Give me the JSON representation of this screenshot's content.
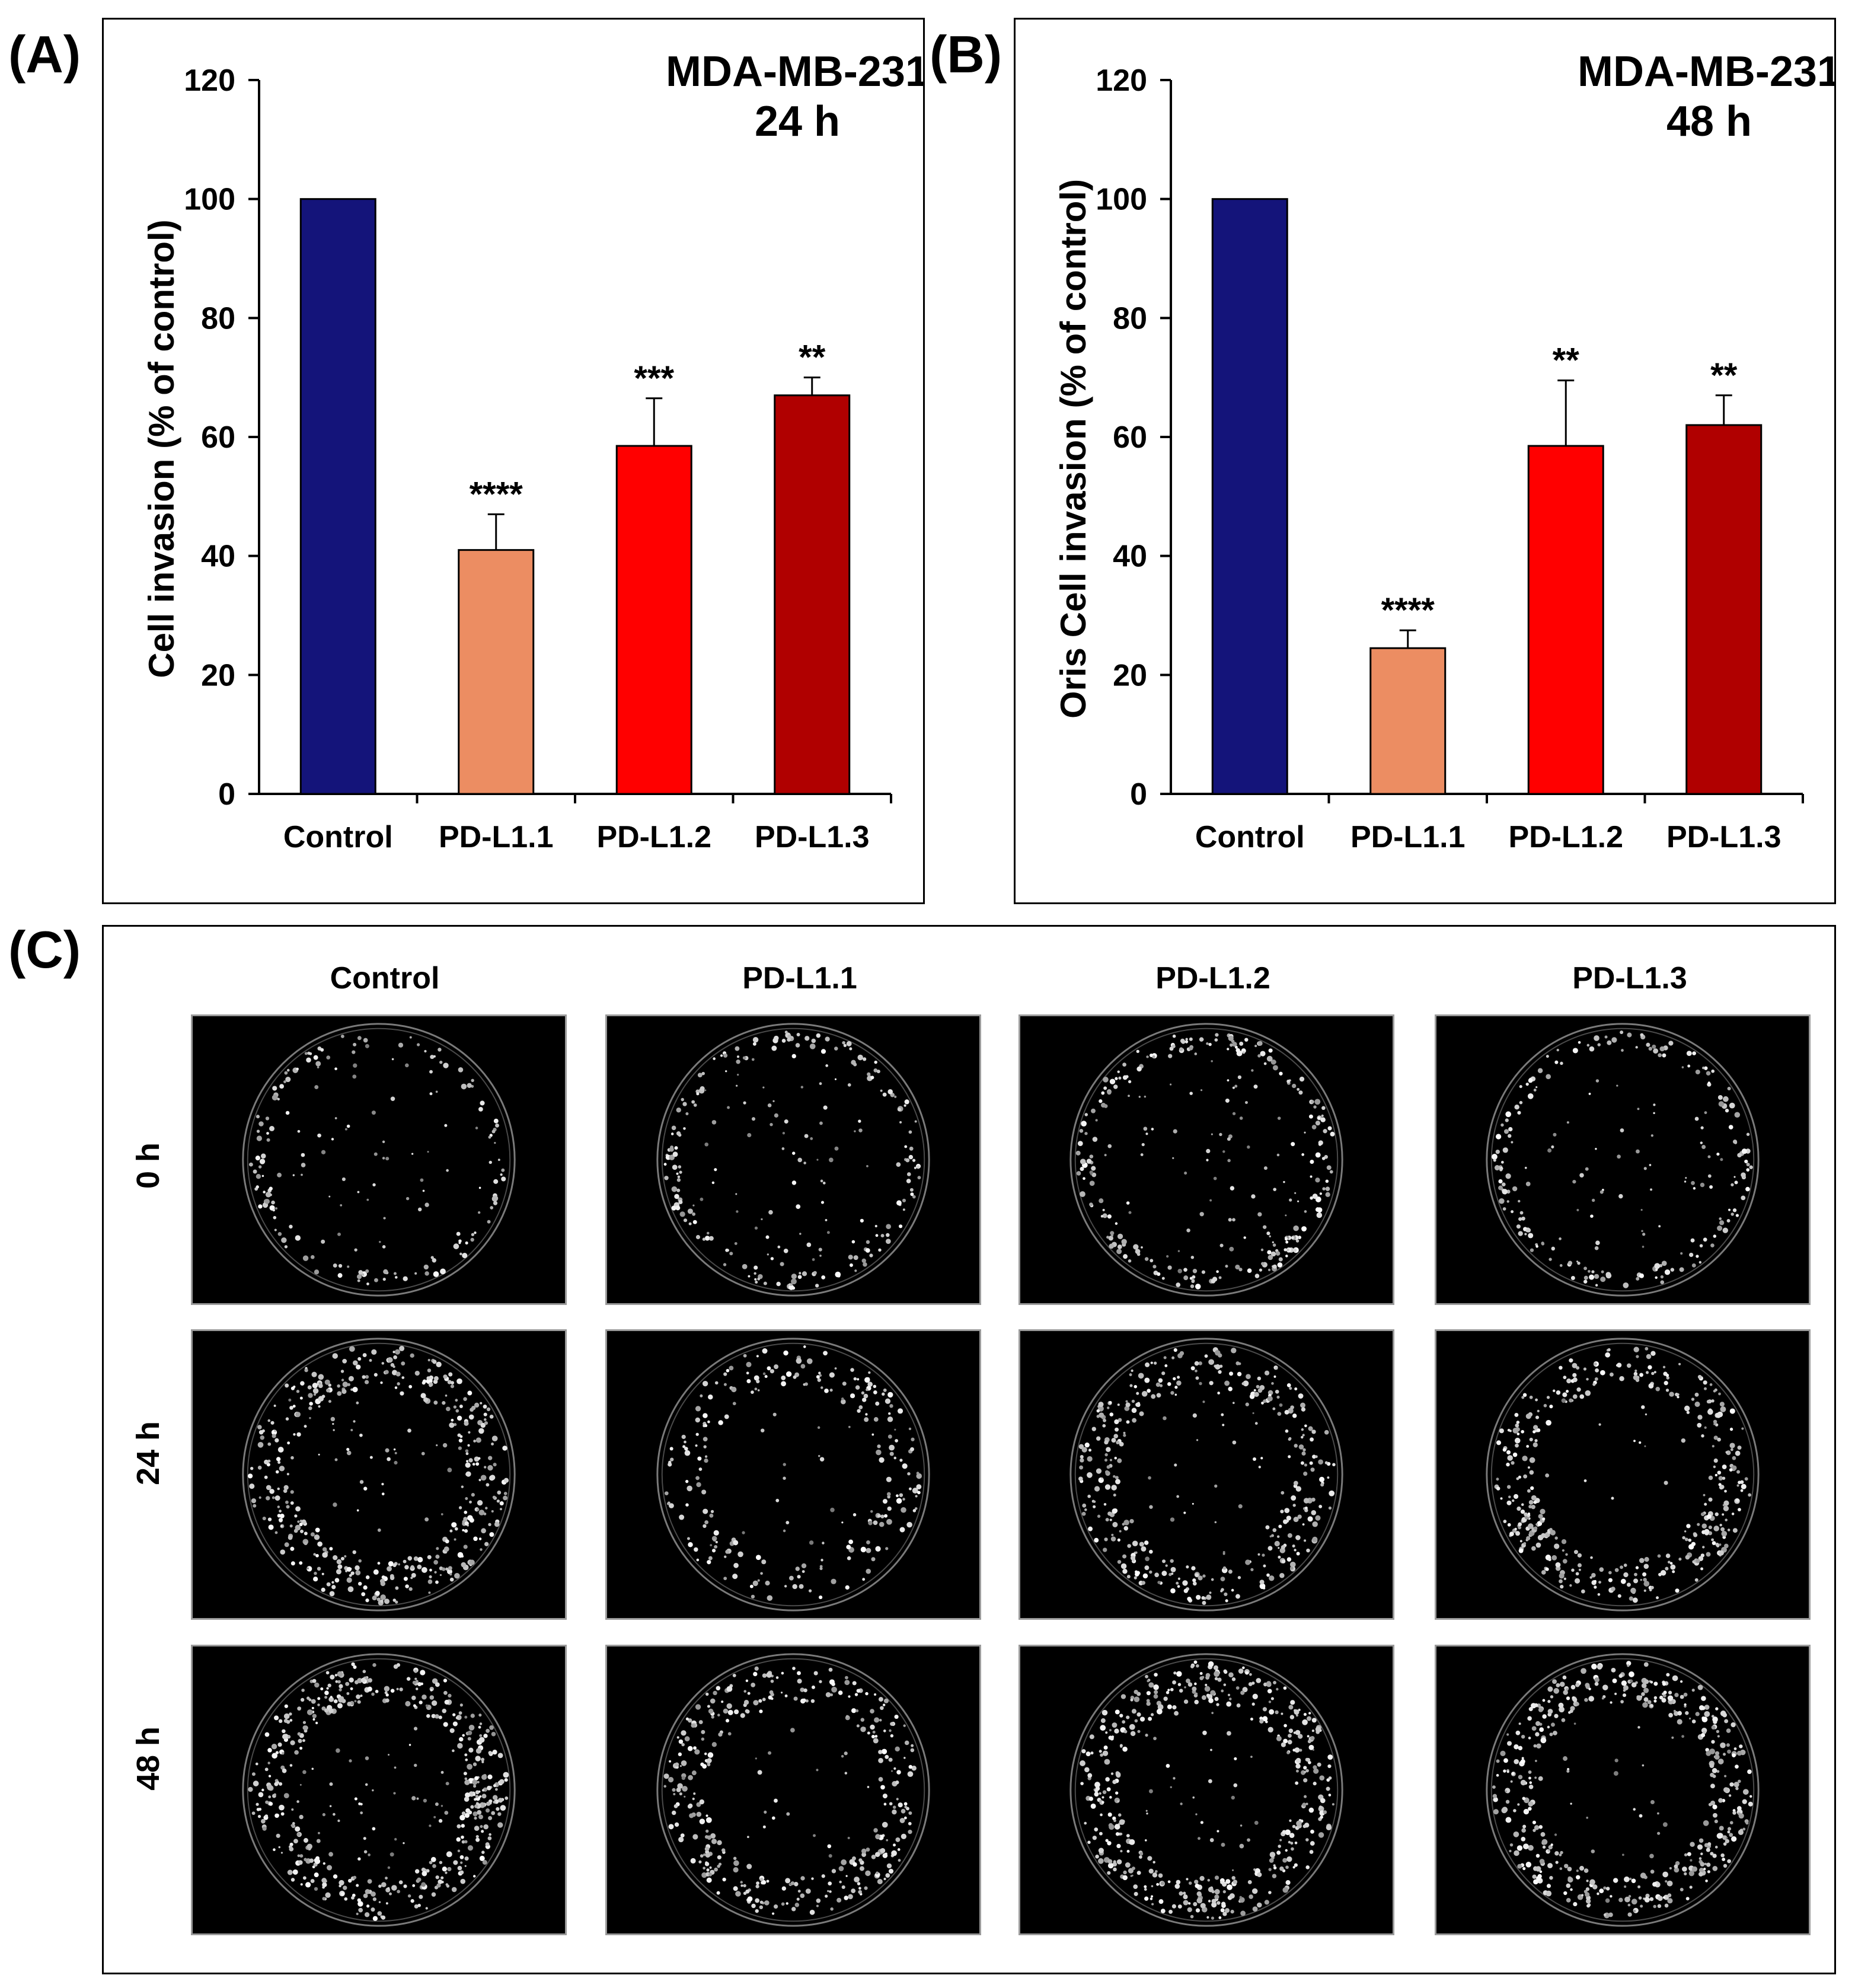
{
  "panel_labels": {
    "a": "(A)",
    "b": "(B)",
    "c": "(C)"
  },
  "chart_data": [
    {
      "type": "bar",
      "panel": "(A)",
      "title_line1": "MDA-MB-231",
      "title_line2": "24 h",
      "ylabel": "Cell invasion (% of control)",
      "xlabel": "",
      "ylim": [
        0,
        120
      ],
      "yticks": [
        0,
        20,
        40,
        60,
        80,
        100,
        120
      ],
      "categories": [
        "Control",
        "PD-L1.1",
        "PD-L1.2",
        "PD-L1.3"
      ],
      "values": [
        100,
        41,
        58.5,
        67
      ],
      "errors": [
        0,
        6,
        8,
        3
      ],
      "significance": [
        "",
        "****",
        "***",
        "**"
      ],
      "colors": [
        "#14147a",
        "#ec8d62",
        "#ff0000",
        "#b00000"
      ]
    },
    {
      "type": "bar",
      "panel": "(B)",
      "title_line1": "MDA-MB-231",
      "title_line2": "48 h",
      "ylabel": "Oris Cell invasion (% of control)",
      "xlabel": "",
      "ylim": [
        0,
        120
      ],
      "yticks": [
        0,
        20,
        40,
        60,
        80,
        100,
        120
      ],
      "categories": [
        "Control",
        "PD-L1.1",
        "PD-L1.2",
        "PD-L1.3"
      ],
      "values": [
        100,
        24.5,
        58.5,
        62
      ],
      "errors": [
        0,
        3,
        11,
        5
      ],
      "significance": [
        "",
        "****",
        "**",
        "**"
      ],
      "colors": [
        "#14147a",
        "#ec8d62",
        "#ff0000",
        "#b00000"
      ]
    }
  ],
  "microscopy": {
    "columns": [
      "Control",
      "PD-L1.1",
      "PD-L1.2",
      "PD-L1.3"
    ],
    "rows": [
      "0 h",
      "24 h",
      "48 h"
    ]
  }
}
